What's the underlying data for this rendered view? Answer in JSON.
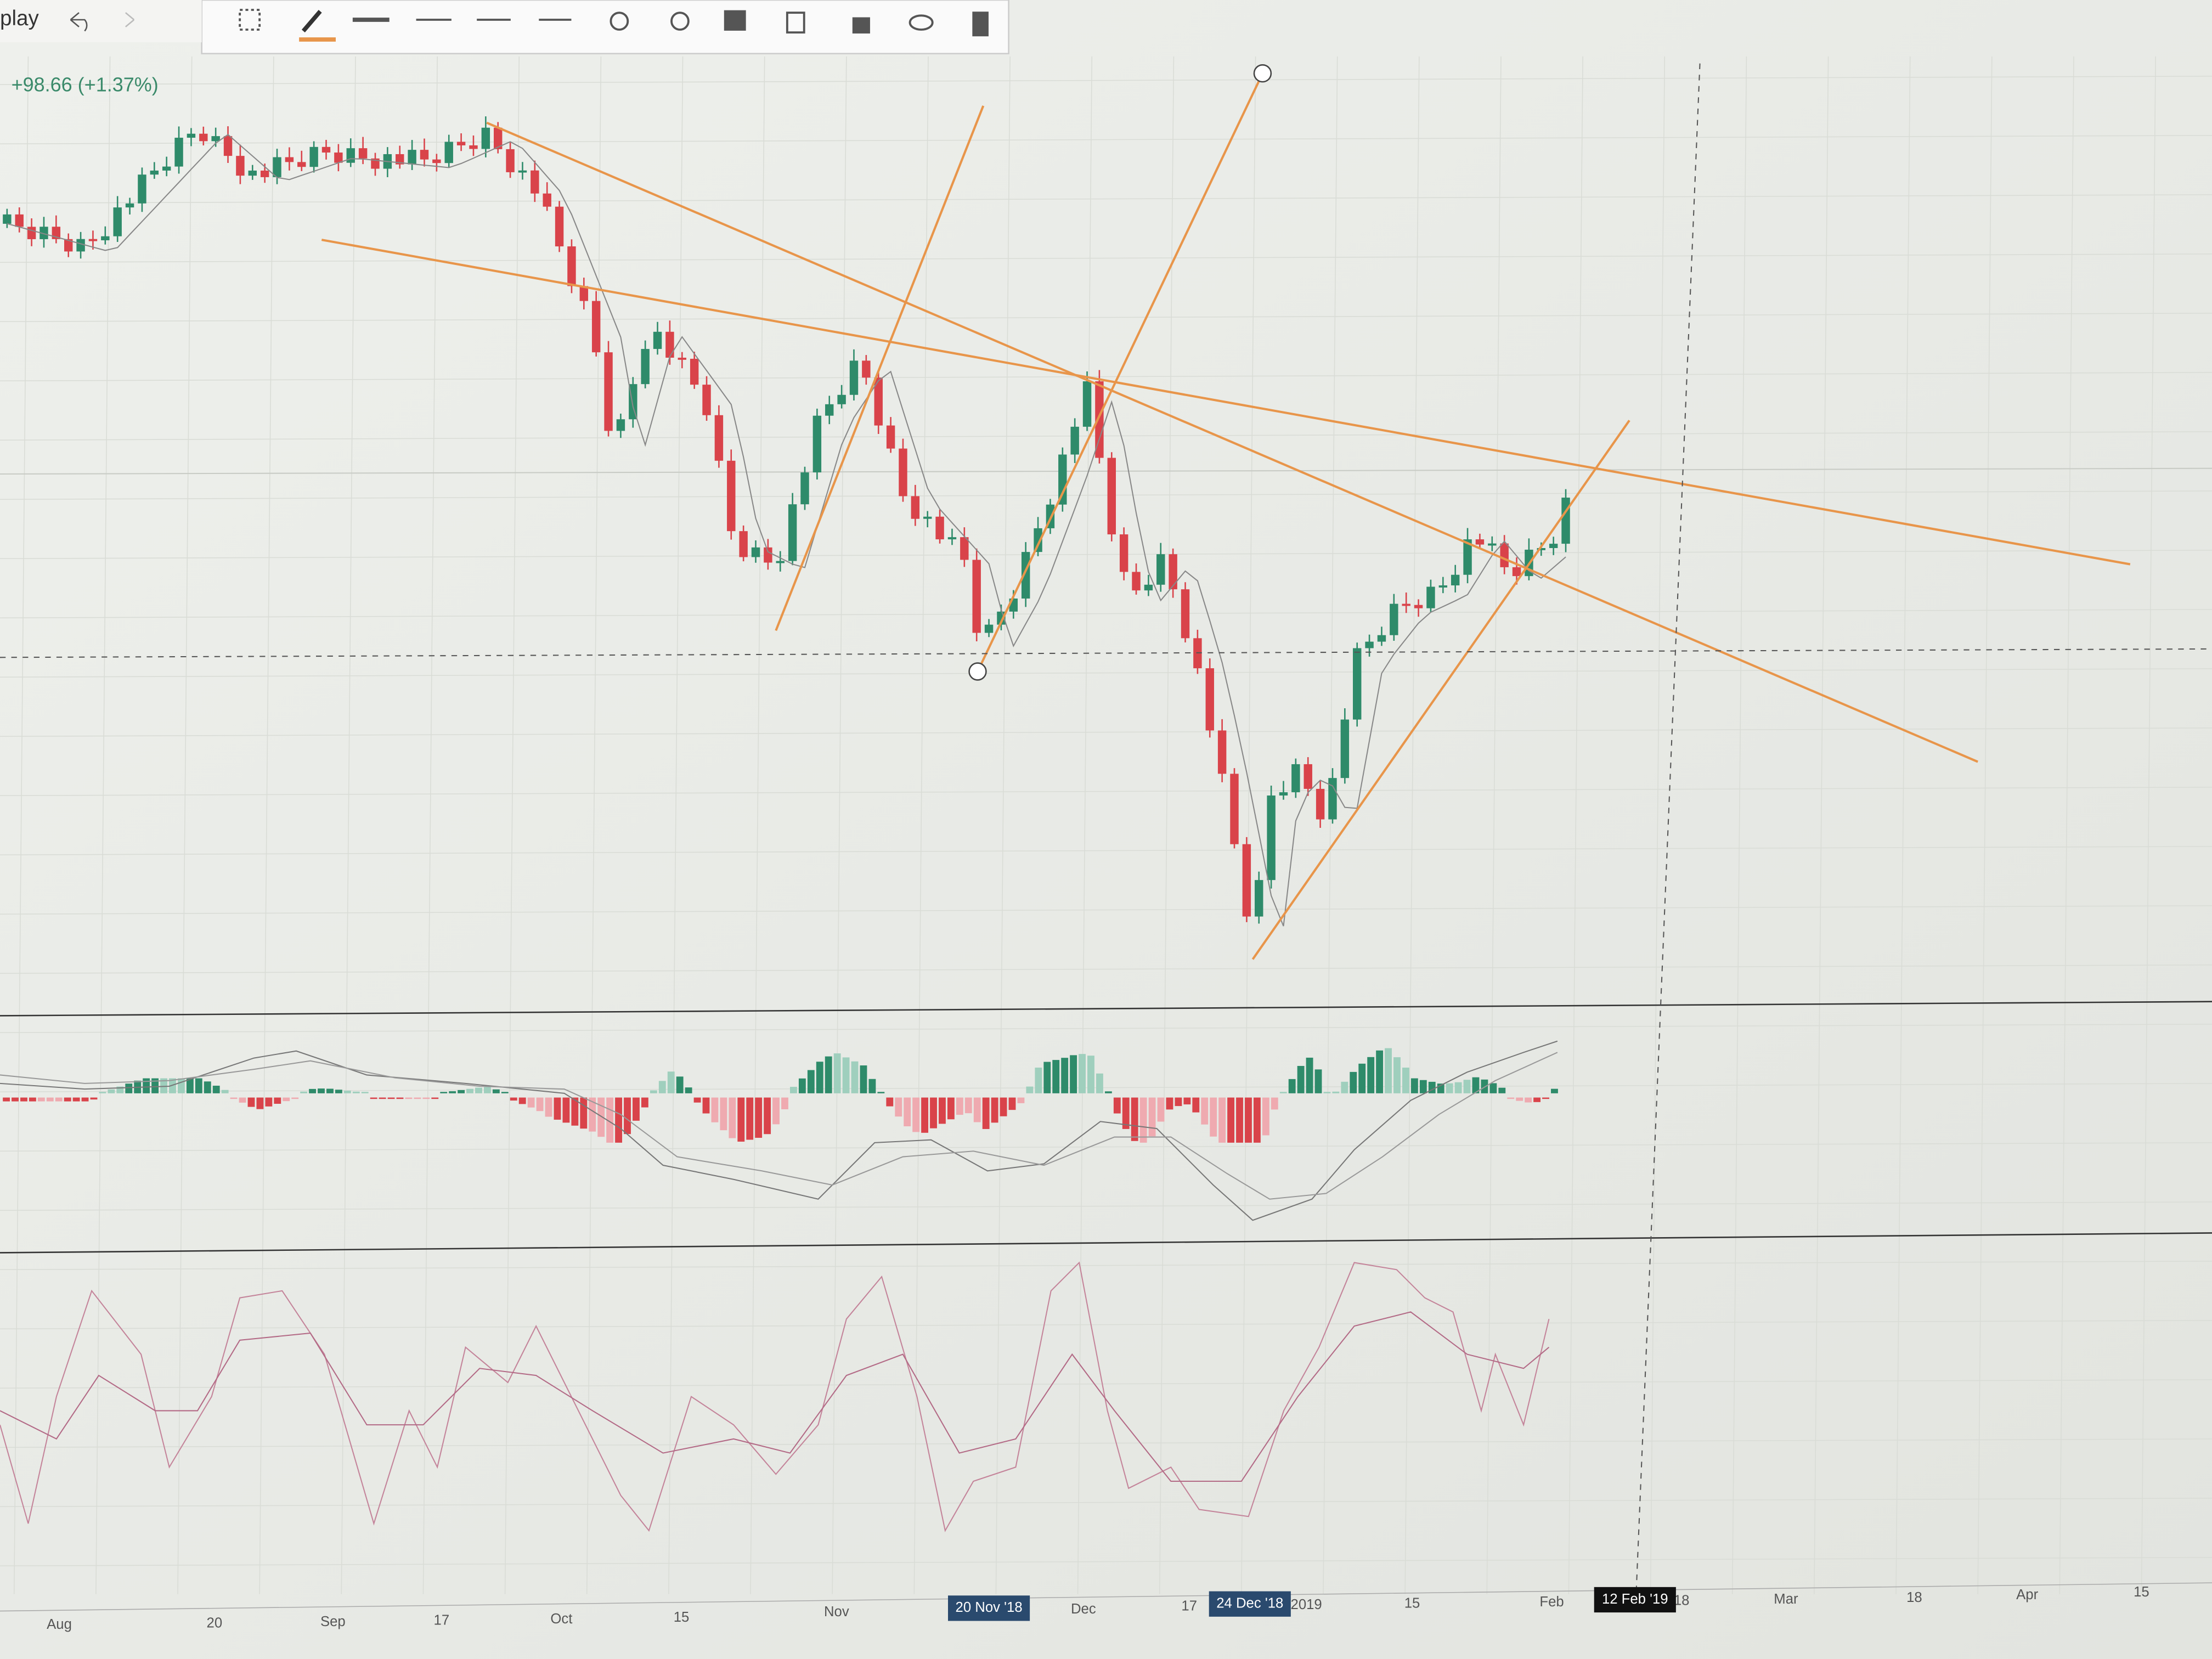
{
  "toolbar": {
    "menu_label": "play"
  },
  "price_change": "+98.66 (+1.37%)",
  "x_axis": {
    "labels": [
      "Aug",
      "20",
      "Sep",
      "17",
      "Oct",
      "15",
      "Nov",
      "Dec",
      "17",
      "2019",
      "15",
      "Feb",
      "18",
      "Mar",
      "18",
      "Apr",
      "15"
    ]
  },
  "crosshair_labels": [
    "20 Nov '18",
    "24 Dec '18",
    "12 Feb '19"
  ]
}
